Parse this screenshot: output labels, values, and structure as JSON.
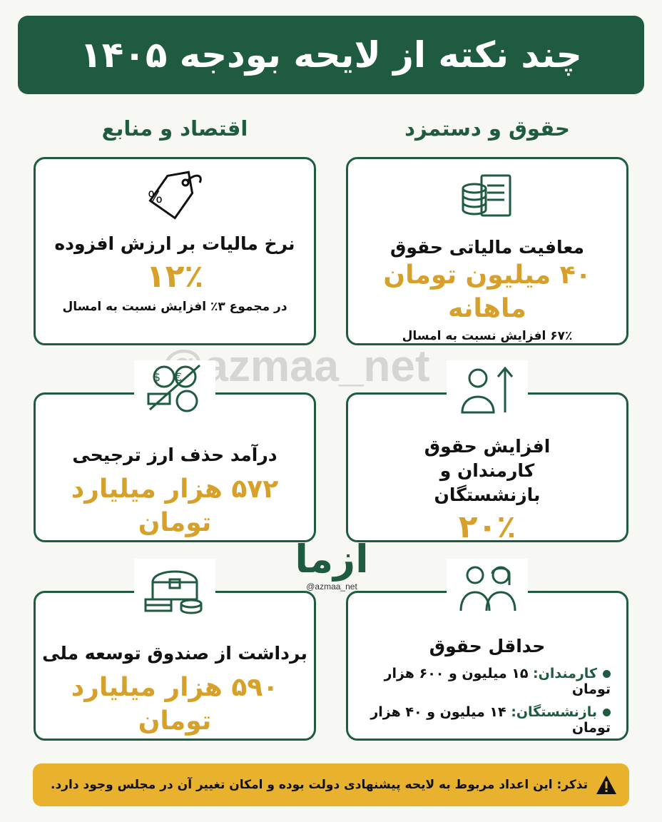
{
  "header": {
    "title": "چند نکته از لایحه بودجه ۱۴۰۵"
  },
  "columns": {
    "right": "حقوق و دستمزد",
    "left": "اقتصاد و منابع"
  },
  "cards": {
    "tax_exemption": {
      "icon": "coins-document-icon",
      "title": "معافیت مالیاتی حقوق",
      "value": "۴۰ میلیون تومان ماهانه",
      "note": "۶۷٪ افزایش نسبت به امسال"
    },
    "vat": {
      "icon": "percent-tag-icon",
      "title": "نرخ مالیات بر ارزش افزوده",
      "value": "۱۲٪",
      "note": "در مجموع ۳٪ افزایش نسبت به امسال"
    },
    "salary_raise": {
      "icon": "person-arrow-up-icon",
      "title": "افزایش حقوق کارمندان و بازنشستگان",
      "value": "۲۰٪"
    },
    "subsidy_removal": {
      "icon": "currency-crossed-icon",
      "title": "درآمد حذف ارز ترجیحی",
      "value": "۵۷۲ هزار میلیارد تومان"
    },
    "min_wage": {
      "icon": "man-woman-icon",
      "title": "حداقل حقوق",
      "items": [
        {
          "label": "کارمندان:",
          "value": "۱۵ میلیون و ۶۰۰ هزار تومان"
        },
        {
          "label": "بازنشستگان:",
          "value": "۱۴ میلیون و ۴۰ هزار تومان"
        }
      ]
    },
    "national_fund": {
      "icon": "treasure-chest-icon",
      "title": "برداشت از صندوق توسعه ملی",
      "value": "۵۹۰ هزار میلیارد تومان"
    }
  },
  "watermark": "@azmaa_net",
  "logo": {
    "mark": "ازما",
    "handle": "@azmaa_net"
  },
  "warning": {
    "icon": "warning-icon",
    "text": "تذکر: این اعداد مربوط به لایحه پیشنهادی دولت بوده و امکان تغییر آن در مجلس وجود دارد."
  },
  "colors": {
    "green": "#1f5b40",
    "gold": "#d6a02a",
    "warning_bg": "#e8b12e"
  }
}
